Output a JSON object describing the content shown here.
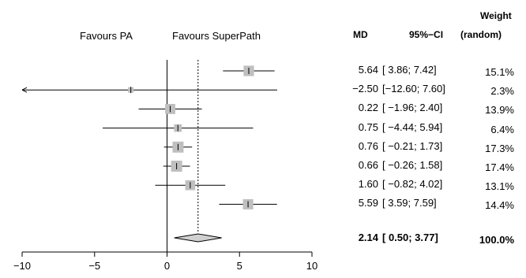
{
  "chart_data": {
    "type": "forest",
    "favours_left": "Favours PA",
    "favours_right": "Favours SuperPath",
    "headers": {
      "md": "MD",
      "ci": "95%−CI",
      "weight_line1": "Weight",
      "weight_line2": "(random)"
    },
    "xlim": [
      -10,
      10
    ],
    "xticks": [
      -10,
      -5,
      0,
      5,
      10
    ],
    "xtick_labels": [
      "−10",
      "−5",
      "0",
      "5",
      "10"
    ],
    "reference_line": 0,
    "studies": [
      {
        "md": 5.64,
        "lower": 3.86,
        "upper": 7.42,
        "weight": 15.1,
        "md_text": "5.64",
        "ci_text": "[ 3.86; 7.42]",
        "weight_text": "15.1%"
      },
      {
        "md": -2.5,
        "lower": -12.6,
        "upper": 7.6,
        "weight": 2.3,
        "md_text": "−2.50",
        "ci_text": "[−12.60; 7.60]",
        "weight_text": "2.3%"
      },
      {
        "md": 0.22,
        "lower": -1.96,
        "upper": 2.4,
        "weight": 13.9,
        "md_text": "0.22",
        "ci_text": "[ −1.96; 2.40]",
        "weight_text": "13.9%"
      },
      {
        "md": 0.75,
        "lower": -4.44,
        "upper": 5.94,
        "weight": 6.4,
        "md_text": "0.75",
        "ci_text": "[ −4.44; 5.94]",
        "weight_text": "6.4%"
      },
      {
        "md": 0.76,
        "lower": -0.21,
        "upper": 1.73,
        "weight": 17.3,
        "md_text": "0.76",
        "ci_text": "[ −0.21; 1.73]",
        "weight_text": "17.3%"
      },
      {
        "md": 0.66,
        "lower": -0.26,
        "upper": 1.58,
        "weight": 17.4,
        "md_text": "0.66",
        "ci_text": "[ −0.26; 1.58]",
        "weight_text": "17.4%"
      },
      {
        "md": 1.6,
        "lower": -0.82,
        "upper": 4.02,
        "weight": 13.1,
        "md_text": "1.60",
        "ci_text": "[ −0.82; 4.02]",
        "weight_text": "13.1%"
      },
      {
        "md": 5.59,
        "lower": 3.59,
        "upper": 7.59,
        "weight": 14.4,
        "md_text": "5.59",
        "ci_text": "[ 3.59; 7.59]",
        "weight_text": "14.4%"
      }
    ],
    "pooled": {
      "md": 2.14,
      "lower": 0.5,
      "upper": 3.77,
      "weight": 100.0,
      "md_text": "2.14",
      "ci_text": "[ 0.50; 3.77]",
      "weight_text": "100.0%"
    },
    "colors": {
      "box": "#bfbfbf",
      "box_edge": "#8c8c8c",
      "diamond": "#d0d0d0",
      "line": "#000000"
    }
  }
}
